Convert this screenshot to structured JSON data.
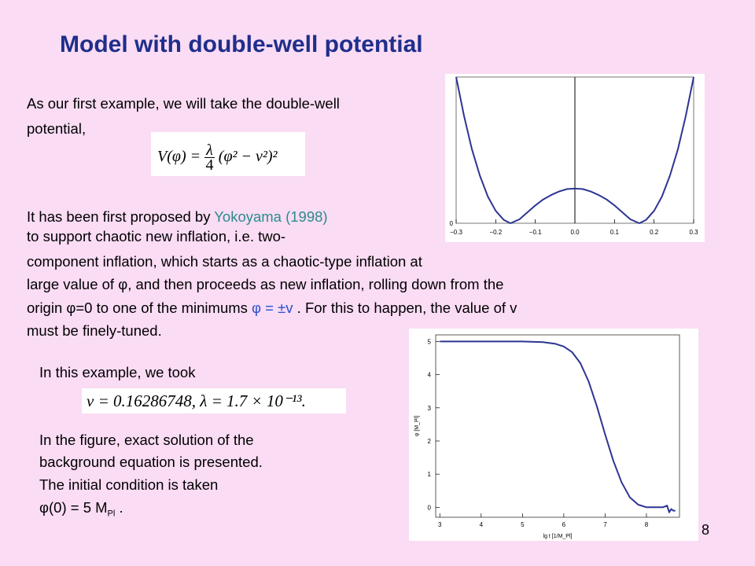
{
  "title": "Model with double-well potential",
  "intro_line1": "As our first example, we will take the double-well",
  "intro_line2": "potential,",
  "formula1": {
    "lhs": "V(φ) =",
    "num": "λ",
    "den": "4",
    "rhs": "(φ² − v²)²"
  },
  "para2_line1_pre": "It has been first proposed by ",
  "para2_citation": "Yokoyama (1998)",
  "para2_line2": "to support chaotic new inflation, i.e. two-",
  "para2_line3": "component inflation, which starts as a chaotic-type inflation at",
  "para2_line4": "large value of φ, and then proceeds as new inflation, rolling down from the",
  "para2_line5_pre": "origin φ=0 to one of the minimums ",
  "para2_minimums": "φ = ±v",
  "para2_line5_post": " .  For this to happen, the value of v",
  "para2_line6": "must be finely-tuned.",
  "example_line": "In this example, we took",
  "formula2": "v = 0.16286748,  λ = 1.7 × 10⁻¹³.",
  "fig_line1": "In the figure, exact solution of the",
  "fig_line2": "background equation is presented.",
  "fig_line3": "The initial condition is taken",
  "fig_line4_pre": "φ(0) = 5 M",
  "fig_line4_sub": "Pl",
  "fig_line4_post": " .",
  "page_number": "8",
  "chart_data": [
    {
      "type": "line",
      "title": "",
      "xlabel": "",
      "ylabel": "",
      "xlim": [
        -0.3,
        0.3
      ],
      "x_ticks": [
        "−0.3",
        "−0.2",
        "−0.1",
        "0.0",
        "0.1",
        "0.2",
        "0.3"
      ],
      "y_ticks": [
        "0"
      ],
      "color": "#2d3592",
      "series": [
        {
          "x": [
            -0.3,
            -0.28,
            -0.26,
            -0.24,
            -0.22,
            -0.2,
            -0.18,
            -0.163,
            -0.14,
            -0.12,
            -0.1,
            -0.08,
            -0.06,
            -0.04,
            -0.02,
            0.0,
            0.02,
            0.04,
            0.06,
            0.08,
            0.1,
            0.12,
            0.14,
            0.163,
            0.18,
            0.2,
            0.22,
            0.24,
            0.26,
            0.28,
            0.3
          ],
          "y": [
            2.95,
            2.16,
            1.49,
            0.96,
            0.54,
            0.25,
            0.07,
            0.0,
            0.08,
            0.22,
            0.36,
            0.48,
            0.57,
            0.64,
            0.69,
            0.7,
            0.69,
            0.64,
            0.57,
            0.48,
            0.36,
            0.22,
            0.08,
            0.0,
            0.07,
            0.25,
            0.54,
            0.96,
            1.49,
            2.16,
            2.95
          ]
        }
      ]
    },
    {
      "type": "line",
      "title": "",
      "xlabel": "lg t [1/M_Pl]",
      "ylabel": "φ [M_Pl]",
      "xlim": [
        2.9,
        8.8
      ],
      "ylim": [
        -0.3,
        5.2
      ],
      "x_ticks": [
        "3",
        "4",
        "5",
        "6",
        "7",
        "8"
      ],
      "y_ticks": [
        "0",
        "1",
        "2",
        "3",
        "4",
        "5"
      ],
      "color": "#2d3592",
      "series": [
        {
          "x": [
            3.0,
            4.0,
            5.0,
            5.5,
            5.8,
            6.0,
            6.2,
            6.4,
            6.6,
            6.8,
            7.0,
            7.2,
            7.4,
            7.6,
            7.8,
            8.0,
            8.2,
            8.4,
            8.5,
            8.55,
            8.6,
            8.65,
            8.7
          ],
          "y": [
            5.0,
            5.0,
            5.0,
            4.98,
            4.93,
            4.85,
            4.68,
            4.35,
            3.8,
            3.05,
            2.2,
            1.4,
            0.75,
            0.3,
            0.08,
            0.0,
            0.0,
            0.0,
            0.05,
            -0.15,
            -0.05,
            -0.1,
            -0.1
          ]
        }
      ]
    }
  ]
}
